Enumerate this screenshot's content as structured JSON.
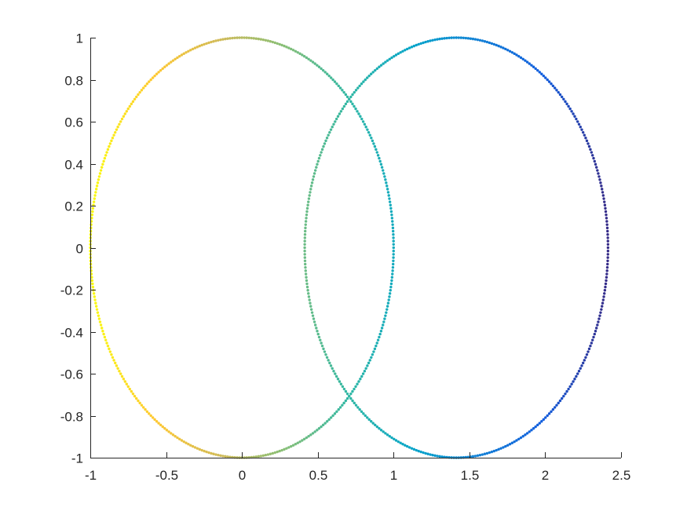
{
  "chart_data": {
    "type": "scatter",
    "title": "",
    "xlabel": "",
    "ylabel": "",
    "xlim": [
      -1,
      2.5
    ],
    "ylim": [
      -1,
      1
    ],
    "grid": false,
    "box": false,
    "legend": "none",
    "x_ticks": [
      -1,
      -0.5,
      0,
      0.5,
      1,
      1.5,
      2,
      2.5
    ],
    "x_tick_labels": [
      "-1",
      "-0.5",
      "0",
      "0.5",
      "1",
      "1.5",
      "2",
      "2.5"
    ],
    "y_ticks": [
      -1,
      -0.8,
      -0.6,
      -0.4,
      -0.2,
      0,
      0.2,
      0.4,
      0.6,
      0.8,
      1
    ],
    "y_tick_labels": [
      "-1",
      "-0.8",
      "-0.6",
      "-0.4",
      "-0.2",
      "0",
      "0.2",
      "0.4",
      "0.6",
      "0.8",
      "1"
    ],
    "colormap": "parula",
    "color_encodes": "x (high x = blue, low x = yellow)",
    "colormap_stops": [
      "#352a87",
      "#0f5cdd",
      "#1481d6",
      "#06a4ca",
      "#2eb7a4",
      "#87bf77",
      "#d1bb59",
      "#fec832",
      "#f9fb0e"
    ],
    "series": [
      {
        "shape": "circle",
        "center": [
          0,
          0
        ],
        "radius": 1,
        "points": 400
      },
      {
        "shape": "circle",
        "center": [
          1.414,
          0
        ],
        "radius": 1,
        "points": 400
      }
    ]
  }
}
